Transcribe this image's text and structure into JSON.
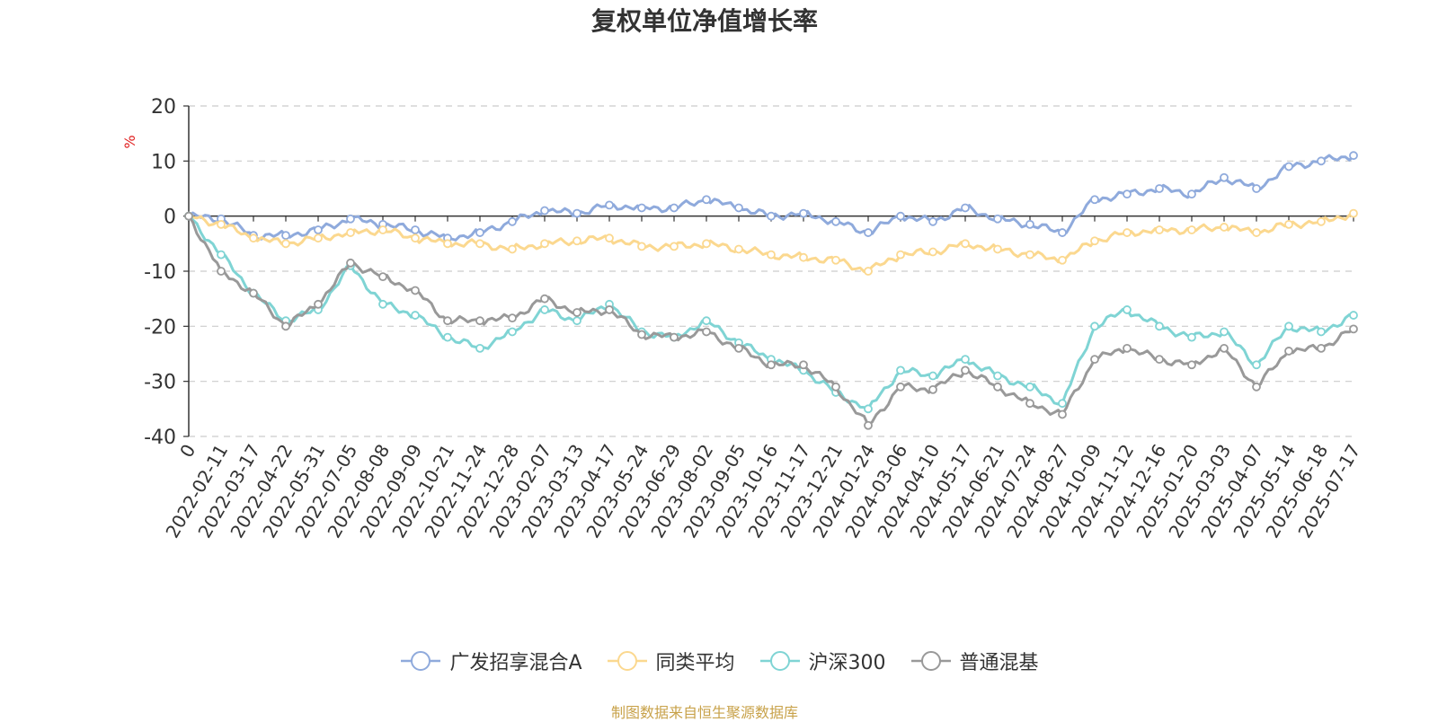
{
  "chart_data": {
    "type": "line",
    "title": "复权单位净值增长率",
    "ylabel": "%",
    "ylim": [
      -40,
      20
    ],
    "yticks": [
      20,
      10,
      0,
      -10,
      -20,
      -30,
      -40
    ],
    "grid": true,
    "legend_position": "bottom",
    "x_ticks": [
      "0",
      "2022-02-11",
      "2022-03-17",
      "2022-04-22",
      "2022-05-31",
      "2022-07-05",
      "2022-08-08",
      "2022-09-09",
      "2022-10-21",
      "2022-11-24",
      "2022-12-28",
      "2023-02-07",
      "2023-03-13",
      "2023-04-17",
      "2023-05-24",
      "2023-06-29",
      "2023-08-02",
      "2023-09-05",
      "2023-10-16",
      "2023-11-17",
      "2023-12-21",
      "2024-01-24",
      "2024-03-06",
      "2024-04-10",
      "2024-05-17",
      "2024-06-21",
      "2024-07-24",
      "2024-08-27",
      "2024-10-09",
      "2024-11-12",
      "2024-12-16",
      "2025-01-20",
      "2025-03-03",
      "2025-04-07",
      "2025-05-14",
      "2025-06-18",
      "2025-07-17"
    ],
    "series": [
      {
        "name": "广发招享混合A",
        "color": "#8faadc",
        "values": [
          0,
          -0.5,
          -3.5,
          -3.5,
          -2.5,
          -0.5,
          -1.5,
          -2.5,
          -4,
          -3,
          -1,
          1,
          0.5,
          2,
          1.5,
          1.5,
          3,
          1.5,
          0,
          0.5,
          -1,
          -3,
          0,
          -1,
          1.5,
          -0.5,
          -1.5,
          -3,
          3,
          4,
          5,
          4,
          7,
          5,
          9,
          10,
          11
        ]
      },
      {
        "name": "同类平均",
        "color": "#fbd88f",
        "values": [
          0,
          -1.5,
          -4,
          -5,
          -4,
          -3,
          -2.5,
          -4,
          -5,
          -5,
          -6,
          -5,
          -4.5,
          -4,
          -5.5,
          -5.5,
          -5,
          -6,
          -7,
          -7.5,
          -8,
          -10,
          -7,
          -6.5,
          -5,
          -6,
          -7,
          -8,
          -4.5,
          -3,
          -2.5,
          -2.5,
          -2,
          -3,
          -1.5,
          -1,
          0.5
        ]
      },
      {
        "name": "沪深300",
        "color": "#7fd4d4",
        "values": [
          0,
          -7,
          -14,
          -19,
          -17,
          -9,
          -16,
          -18,
          -22,
          -24,
          -21,
          -17,
          -19,
          -16,
          -21,
          -22,
          -19,
          -23,
          -26,
          -28,
          -32,
          -35,
          -28,
          -29,
          -26,
          -29,
          -31,
          -34,
          -20,
          -17,
          -20,
          -22,
          -21,
          -27,
          -20,
          -21,
          -18
        ]
      },
      {
        "name": "普通混基",
        "color": "#999999",
        "values": [
          0,
          -10,
          -14,
          -20,
          -16,
          -8.5,
          -11,
          -13.5,
          -19,
          -19,
          -18.5,
          -15,
          -17.5,
          -17,
          -21.5,
          -22,
          -21,
          -24,
          -27,
          -27,
          -31,
          -38,
          -31,
          -31.5,
          -28,
          -31,
          -34,
          -36,
          -26,
          -24,
          -26,
          -27,
          -24,
          -31,
          -24.5,
          -24,
          -20.5
        ]
      }
    ]
  },
  "source_text": "制图数据来自恒生聚源数据库"
}
